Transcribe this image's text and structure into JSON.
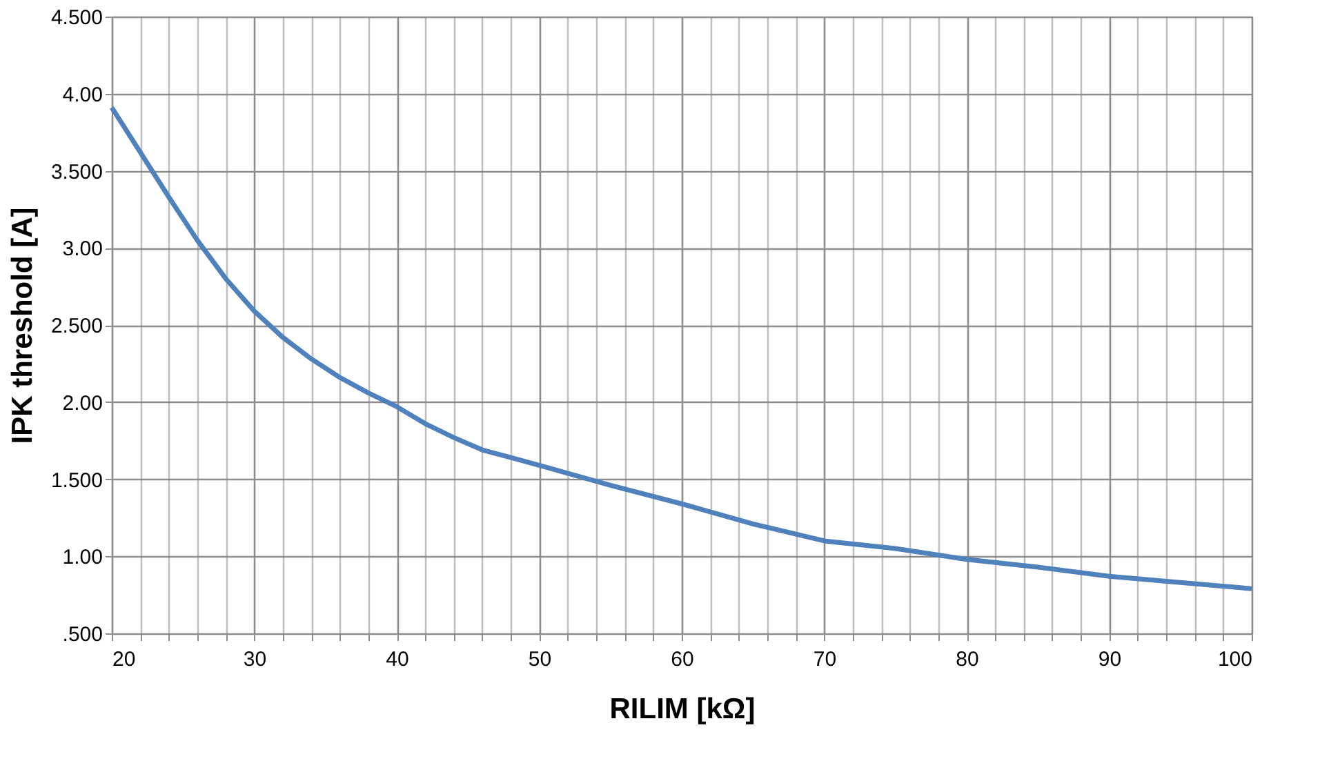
{
  "chart_data": {
    "type": "line",
    "xlabel": "RILIM [kΩ]",
    "ylabel": "IPK threshold [A]",
    "x": [
      20,
      22,
      24,
      26,
      28,
      30,
      32,
      34,
      36,
      38,
      40,
      42,
      44,
      46,
      48,
      50,
      55,
      60,
      65,
      70,
      75,
      80,
      85,
      90,
      95,
      100
    ],
    "series": [
      {
        "color": "#4f81bd",
        "values": [
          3.91,
          3.62,
          3.33,
          3.05,
          2.8,
          2.59,
          2.42,
          2.28,
          2.16,
          2.06,
          1.97,
          1.86,
          1.77,
          1.69,
          1.64,
          1.59,
          1.46,
          1.34,
          1.21,
          1.1,
          1.05,
          0.98,
          0.93,
          0.87,
          0.83,
          0.79
        ]
      }
    ],
    "xlim": [
      20,
      100
    ],
    "xticks": [
      20,
      {
        "value": 22,
        "label": null
      },
      {
        "value": 24,
        "label": null
      },
      {
        "value": 26,
        "label": null
      },
      {
        "value": 28,
        "label": null
      },
      30,
      {
        "value": 32,
        "label": null
      },
      {
        "value": 34,
        "label": null
      },
      {
        "value": 36,
        "label": null
      },
      {
        "value": 38,
        "label": null
      },
      40,
      {
        "value": 42,
        "label": null
      },
      {
        "value": 44,
        "label": null
      },
      {
        "value": 46,
        "label": null
      },
      {
        "value": 48,
        "label": null
      },
      50,
      {
        "value": 52,
        "label": null
      },
      {
        "value": 54,
        "label": null
      },
      {
        "value": 56,
        "label": null
      },
      {
        "value": 58,
        "label": null
      },
      60,
      {
        "value": 62,
        "label": null
      },
      {
        "value": 64,
        "label": null
      },
      {
        "value": 66,
        "label": null
      },
      {
        "value": 68,
        "label": null
      },
      70,
      {
        "value": 72,
        "label": null
      },
      {
        "value": 74,
        "label": null
      },
      {
        "value": 76,
        "label": null
      },
      {
        "value": 78,
        "label": null
      },
      80,
      {
        "value": 82,
        "label": null
      },
      {
        "value": 84,
        "label": null
      },
      {
        "value": 86,
        "label": null
      },
      {
        "value": 88,
        "label": null
      },
      90,
      {
        "value": 92,
        "label": null
      },
      {
        "value": 94,
        "label": null
      },
      {
        "value": 96,
        "label": null
      },
      {
        "value": 98,
        "label": null
      },
      100
    ],
    "ylim": [
      0.5,
      4.5
    ],
    "yticks": [
      {
        "value": 0.5,
        "label": ".500"
      },
      {
        "value": 1,
        "label": "1.00"
      },
      {
        "value": 1.5,
        "label": "1.500"
      },
      {
        "value": 2,
        "label": "2.00"
      },
      {
        "value": 2.5,
        "label": "2.500"
      },
      {
        "value": 3,
        "label": "3.00"
      },
      {
        "value": 3.5,
        "label": "3.500"
      },
      {
        "value": 4,
        "label": "4.00"
      },
      {
        "value": 4.5,
        "label": "4.500"
      }
    ],
    "grid": true,
    "legend": false,
    "marker": "none",
    "line_style": "solid"
  }
}
